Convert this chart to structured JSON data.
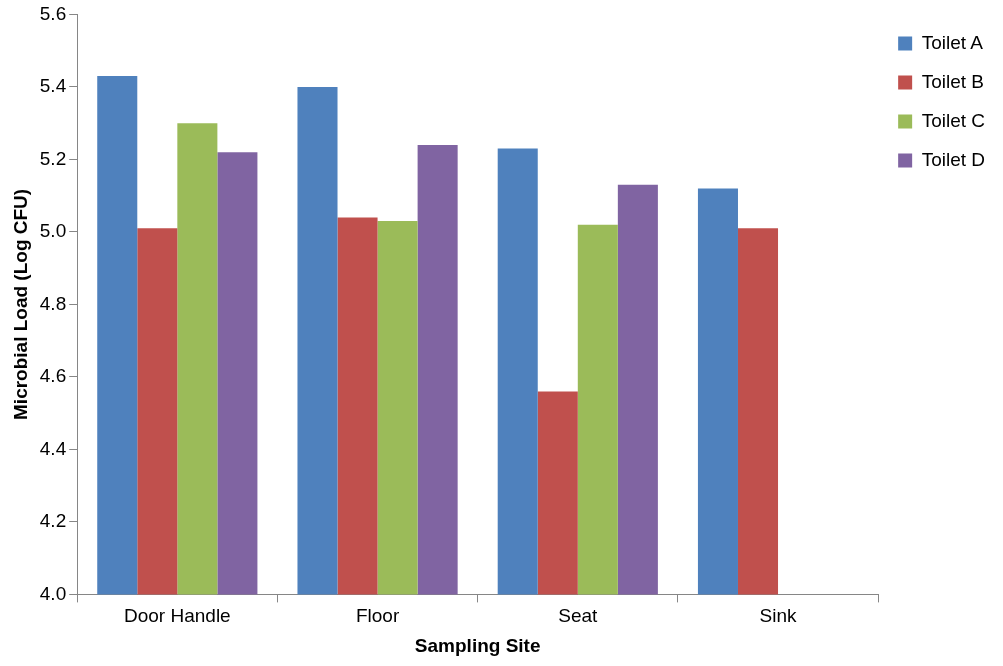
{
  "chart_data": {
    "type": "bar",
    "xlabel": "Sampling Site",
    "ylabel": "Microbial Load (Log CFU)",
    "categories": [
      "Door Handle",
      "Floor",
      "Seat",
      "Sink"
    ],
    "series": [
      {
        "name": "Toilet A",
        "color": "#4f81bd",
        "values": [
          5.43,
          5.4,
          5.23,
          5.12
        ]
      },
      {
        "name": "Toilet B",
        "color": "#c0504d",
        "values": [
          5.01,
          5.04,
          4.56,
          5.01
        ]
      },
      {
        "name": "Toilet C",
        "color": "#9bbb59",
        "values": [
          5.3,
          5.03,
          5.02,
          null
        ]
      },
      {
        "name": "Toilet D",
        "color": "#8064a2",
        "values": [
          5.22,
          5.24,
          5.13,
          null
        ]
      }
    ],
    "ylim": [
      4.0,
      5.6
    ],
    "yticks": [
      {
        "value": 4.0,
        "label": "4.0"
      },
      {
        "value": 4.2,
        "label": "4.2"
      },
      {
        "value": 4.4,
        "label": "4.4"
      },
      {
        "value": 4.6,
        "label": "4.6"
      },
      {
        "value": 4.8,
        "label": "4.8"
      },
      {
        "value": 5.0,
        "label": "5.0"
      },
      {
        "value": 5.2,
        "label": "5.2"
      },
      {
        "value": 5.4,
        "label": "5.4"
      },
      {
        "value": 5.6,
        "label": "5.6"
      }
    ],
    "grid": false,
    "legend": "top right"
  }
}
